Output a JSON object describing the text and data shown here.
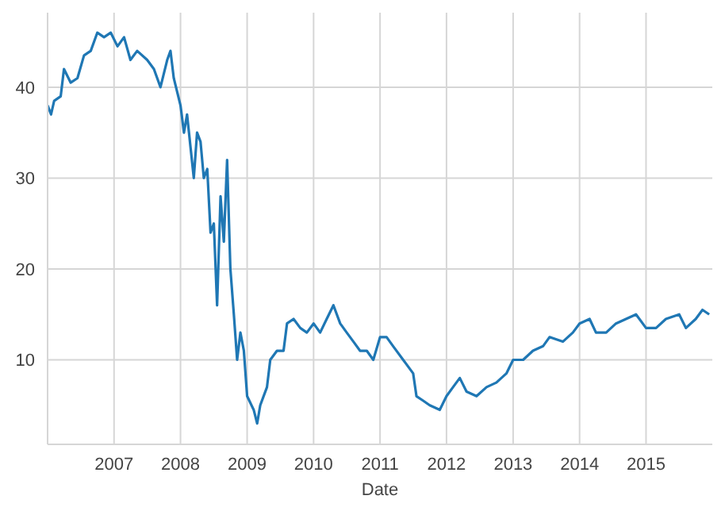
{
  "chart_data": {
    "type": "line",
    "xlabel": "Date",
    "x": [
      "2006-01-01",
      "2006-01-20",
      "2006-02-06",
      "2006-03-14",
      "2006-04-01",
      "2006-05-08",
      "2006-06-14",
      "2006-07-20",
      "2006-08-26",
      "2006-10-01",
      "2006-11-07",
      "2006-12-14",
      "2007-01-20",
      "2007-02-25",
      "2007-04-01",
      "2007-05-08",
      "2007-07-02",
      "2007-08-08",
      "2007-09-13",
      "2007-10-20",
      "2007-11-07",
      "2007-11-25",
      "2008-01-01",
      "2008-01-20",
      "2008-02-06",
      "2008-03-14",
      "2008-04-01",
      "2008-04-20",
      "2008-05-08",
      "2008-05-27",
      "2008-06-14",
      "2008-07-02",
      "2008-07-20",
      "2008-08-08",
      "2008-08-26",
      "2008-09-13",
      "2008-10-01",
      "2008-10-20",
      "2008-11-07",
      "2008-11-25",
      "2008-12-14",
      "2009-01-01",
      "2009-02-06",
      "2009-02-25",
      "2009-03-14",
      "2009-04-20",
      "2009-05-08",
      "2009-06-14",
      "2009-07-20",
      "2009-08-08",
      "2009-09-13",
      "2009-10-20",
      "2009-11-25",
      "2010-01-01",
      "2010-02-06",
      "2010-03-14",
      "2010-04-20",
      "2010-05-27",
      "2010-07-02",
      "2010-08-08",
      "2010-09-13",
      "2010-10-20",
      "2010-11-25",
      "2011-01-01",
      "2011-02-06",
      "2011-03-14",
      "2011-05-08",
      "2011-07-02",
      "2011-07-20",
      "2011-08-26",
      "2011-10-01",
      "2011-11-25",
      "2012-01-01",
      "2012-02-06",
      "2012-03-14",
      "2012-04-20",
      "2012-06-14",
      "2012-08-08",
      "2012-10-01",
      "2012-11-25",
      "2013-01-01",
      "2013-02-25",
      "2013-04-20",
      "2013-06-14",
      "2013-07-20",
      "2013-10-01",
      "2013-11-25",
      "2014-01-01",
      "2014-02-25",
      "2014-04-01",
      "2014-05-27",
      "2014-07-20",
      "2014-09-13",
      "2014-11-07",
      "2015-01-01",
      "2015-02-25",
      "2015-04-20",
      "2015-07-02",
      "2015-08-08",
      "2015-10-01",
      "2015-11-07",
      "2015-12-14"
    ],
    "series": [
      {
        "color": "#1f77b4",
        "values": [
          38,
          37,
          38.5,
          39,
          42,
          40.5,
          41,
          43.5,
          44,
          46,
          45.5,
          46,
          44.5,
          45.5,
          43,
          44,
          43,
          42,
          40,
          43,
          44,
          41,
          38,
          35,
          37,
          30,
          35,
          34,
          30,
          31,
          24,
          25,
          16,
          28,
          23,
          32,
          20,
          15,
          10,
          13,
          11,
          6,
          4.5,
          3,
          5,
          7,
          10,
          11,
          11,
          14,
          14.5,
          13.5,
          13,
          14,
          13,
          14.5,
          16,
          14,
          13,
          12,
          11,
          11,
          10,
          12.5,
          12.5,
          11.5,
          10,
          8.5,
          6,
          5.5,
          5,
          4.5,
          6,
          7,
          8,
          6.5,
          6,
          7,
          7.5,
          8.5,
          10,
          10,
          11,
          11.5,
          12.5,
          12,
          13,
          14,
          14.5,
          13,
          13,
          14,
          14.5,
          15,
          13.5,
          13.5,
          14.5,
          15,
          13.5,
          14.5,
          15.5,
          15
        ]
      }
    ],
    "xlim": [
      "2006-01-01",
      "2015-12-31"
    ],
    "xticks": [
      "2007",
      "2008",
      "2009",
      "2010",
      "2011",
      "2012",
      "2013",
      "2014",
      "2015"
    ],
    "ylim": [
      0.7,
      48.2
    ],
    "yticks": [
      10,
      20,
      30,
      40
    ],
    "grid": true,
    "line_style": "solid"
  }
}
